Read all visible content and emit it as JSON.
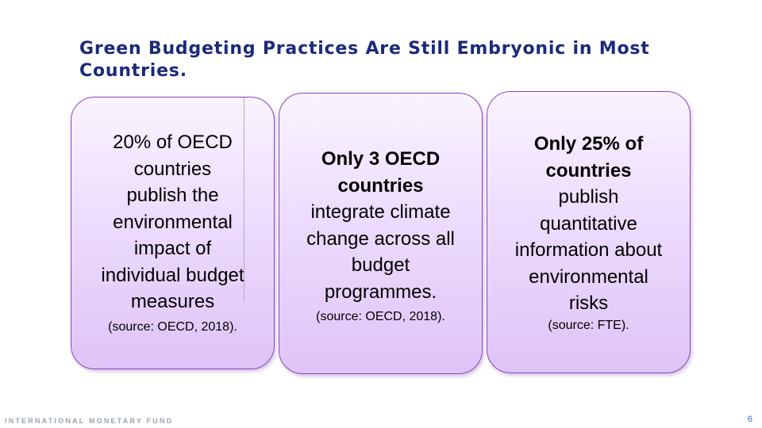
{
  "slide": {
    "title": "Green Budgeting Practices Are Still Embryonic in Most Countries."
  },
  "cards": [
    {
      "lines": [
        {
          "text": "20% of OECD",
          "bold": false
        },
        {
          "text": "countries",
          "bold": false
        },
        {
          "text": "publish the",
          "bold": false
        },
        {
          "text": "environmental",
          "bold": false
        },
        {
          "text": "impact of",
          "bold": false
        },
        {
          "text": "individual budget",
          "bold": false
        },
        {
          "text": "measures",
          "bold": false
        }
      ],
      "source": "(source: OECD, 2018)."
    },
    {
      "lines": [
        {
          "text": "Only 3 OECD",
          "bold": true
        },
        {
          "text": "countries",
          "bold": true
        },
        {
          "text": "integrate climate",
          "bold": false
        },
        {
          "text": "change across all",
          "bold": false
        },
        {
          "text": "budget",
          "bold": false
        },
        {
          "text": "programmes.",
          "bold": false
        }
      ],
      "source": "(source: OECD, 2018)."
    },
    {
      "lines": [
        {
          "text": "Only 25% of",
          "bold": true
        },
        {
          "text": "countries",
          "bold": true
        },
        {
          "text": "publish",
          "bold": false
        },
        {
          "text": "quantitative",
          "bold": false
        },
        {
          "text": "information about",
          "bold": false
        },
        {
          "text": "environmental",
          "bold": false
        },
        {
          "text": "risks",
          "bold": false
        }
      ],
      "source": "(source: FTE)."
    }
  ],
  "footer": {
    "brand": "INTERNATIONAL MONETARY FUND",
    "page_number": "6"
  }
}
